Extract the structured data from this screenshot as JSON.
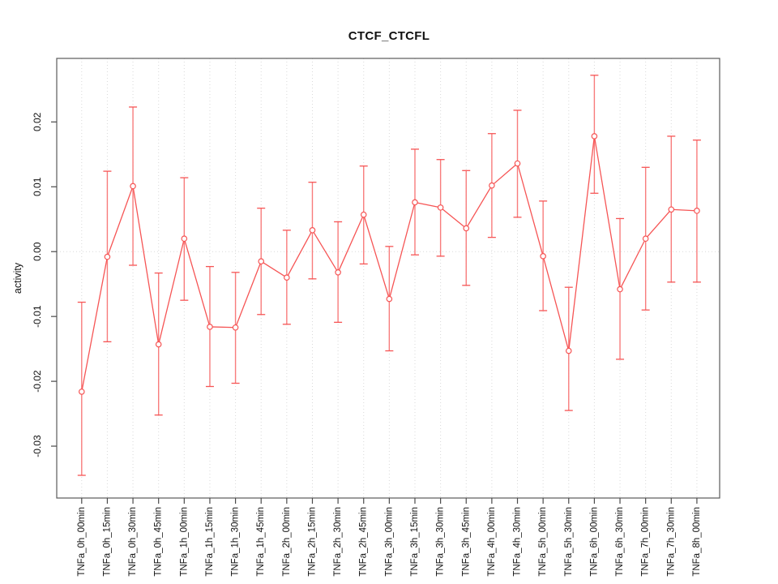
{
  "chart_data": {
    "type": "line",
    "title": "CTCF_CTCFL",
    "xlabel": "",
    "ylabel": "activity",
    "legend_position": "none",
    "grid": {
      "vertical_dotted_at_each_category": true,
      "horizontal_dotted_at_zero": true
    },
    "ylim": [
      -0.038,
      0.0298
    ],
    "yticks": [
      0.02,
      0.01,
      0.0,
      -0.01,
      -0.02,
      -0.03
    ],
    "ytick_labels": [
      "0.02",
      "0.01",
      "0.00",
      "-0.01",
      "-0.02",
      "-0.03"
    ],
    "categories": [
      "TNFa_0h_00min",
      "TNFa_0h_15min",
      "TNFa_0h_30min",
      "TNFa_0h_45min",
      "TNFa_1h_00min",
      "TNFa_1h_15min",
      "TNFa_1h_30min",
      "TNFa_1h_45min",
      "TNFa_2h_00min",
      "TNFa_2h_15min",
      "TNFa_2h_30min",
      "TNFa_2h_45min",
      "TNFa_3h_00min",
      "TNFa_3h_15min",
      "TNFa_3h_30min",
      "TNFa_3h_45min",
      "TNFa_4h_00min",
      "TNFa_4h_30min",
      "TNFa_5h_00min",
      "TNFa_5h_30min",
      "TNFa_6h_00min",
      "TNFa_6h_30min",
      "TNFa_7h_00min",
      "TNFa_7h_30min",
      "TNFa_8h_00min"
    ],
    "series": [
      {
        "name": "activity",
        "marker": "open-circle",
        "values": [
          -0.0216,
          -0.0008,
          0.0101,
          -0.0143,
          0.002,
          -0.0116,
          -0.0117,
          -0.0015,
          -0.004,
          0.0033,
          -0.0032,
          0.0057,
          -0.0073,
          0.0076,
          0.0068,
          0.0036,
          0.0102,
          0.0136,
          -0.0007,
          -0.0153,
          0.0178,
          -0.0058,
          0.002,
          0.0065,
          0.0063
        ],
        "error_upper": [
          -0.0078,
          0.0124,
          0.0223,
          -0.0033,
          0.0114,
          -0.0023,
          -0.0032,
          0.0067,
          0.0033,
          0.0107,
          0.0046,
          0.0132,
          0.0008,
          0.0158,
          0.0142,
          0.0125,
          0.0182,
          0.0218,
          0.0078,
          -0.0055,
          0.0272,
          0.0051,
          0.013,
          0.0178,
          0.0172
        ],
        "error_lower": [
          -0.0345,
          -0.0139,
          -0.0021,
          -0.0252,
          -0.0075,
          -0.0208,
          -0.0203,
          -0.0097,
          -0.0112,
          -0.0042,
          -0.0109,
          -0.0019,
          -0.0153,
          -0.0005,
          -0.0007,
          -0.0052,
          0.0022,
          0.0053,
          -0.0091,
          -0.0245,
          0.009,
          -0.0166,
          -0.009,
          -0.0047,
          -0.0047
        ]
      }
    ],
    "colors": {
      "series": "#f65555",
      "error_bar": "#f87c7c",
      "grid": "#d9d9d9",
      "box": "#5a5a5a",
      "tick": "#4a4a4a",
      "text": "#111111"
    }
  }
}
